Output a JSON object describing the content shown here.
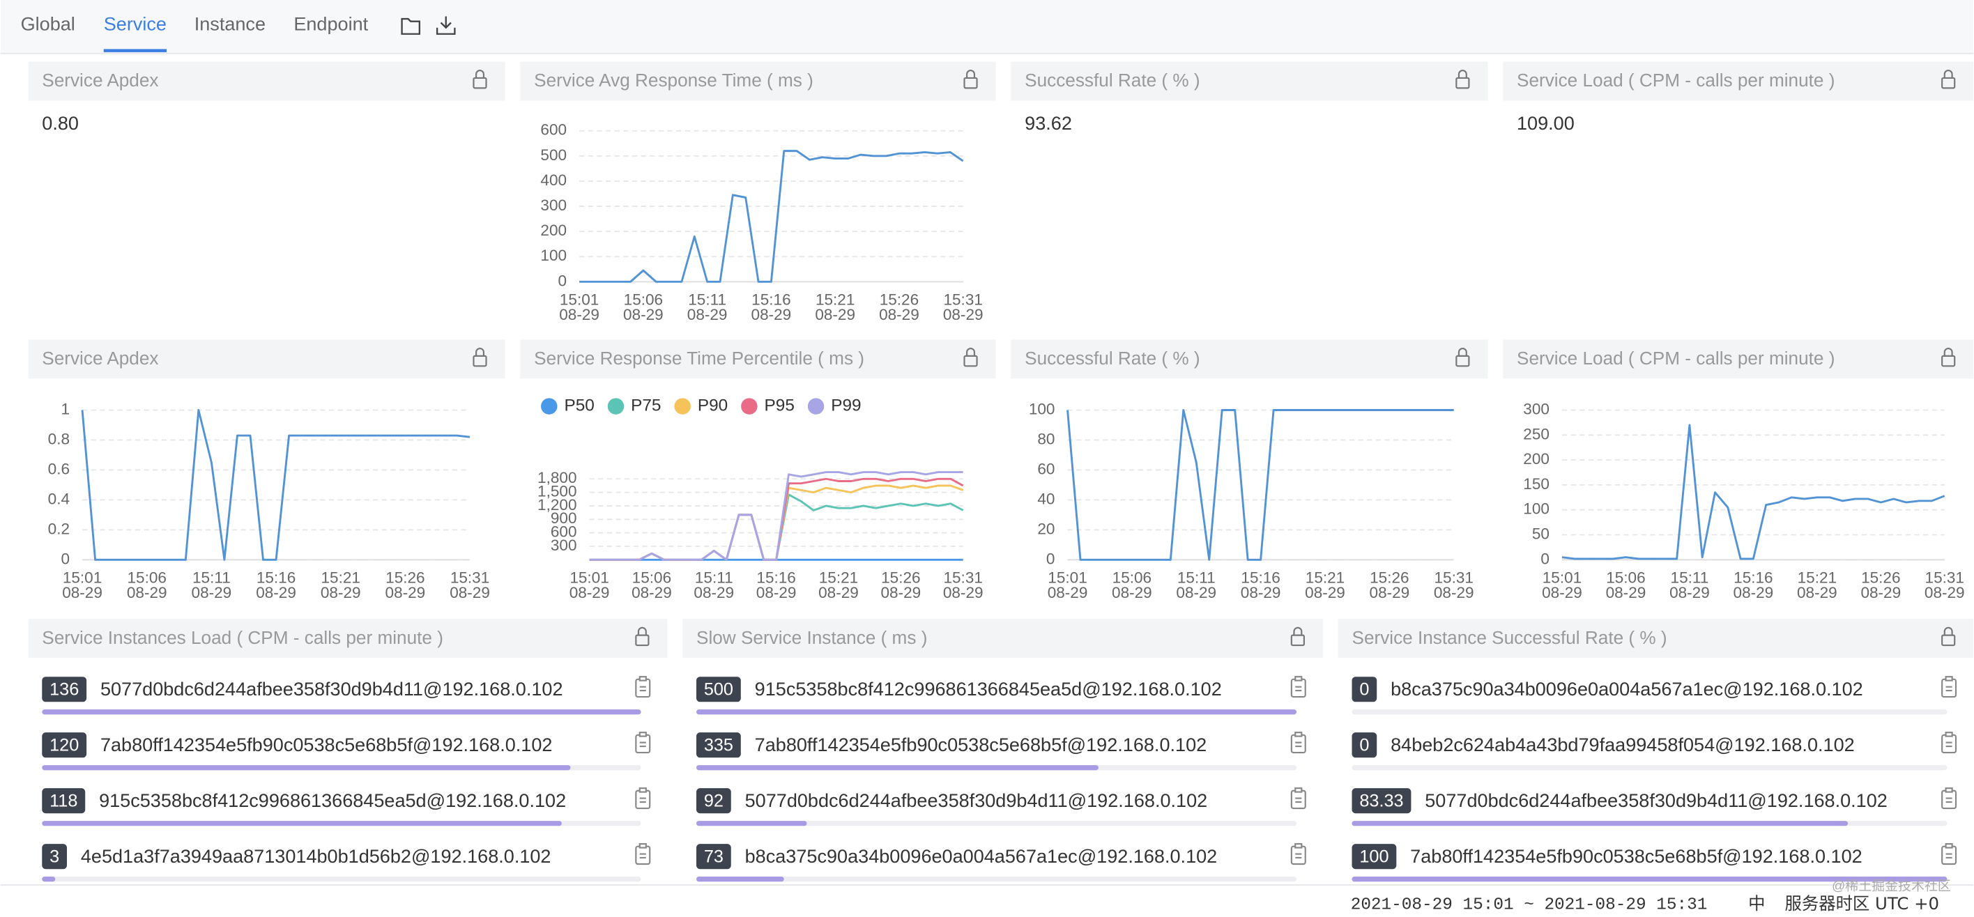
{
  "nav": {
    "tabs": [
      "Global",
      "Service",
      "Instance",
      "Endpoint"
    ],
    "active": 1
  },
  "cards": [
    {
      "title": "Service Apdex",
      "value": "0.80"
    },
    {
      "title": "Successful Rate ( % )",
      "value": "93.62"
    },
    {
      "title": "Service Load ( CPM - calls per minute )",
      "value": "109.00"
    }
  ],
  "chart_data": [
    {
      "type": "line",
      "title": "Service Avg Response Time ( ms )",
      "categories": [
        "15:01",
        null,
        null,
        null,
        null,
        "15:06",
        null,
        null,
        null,
        null,
        "15:11",
        null,
        null,
        null,
        null,
        "15:16",
        null,
        null,
        null,
        null,
        "15:21",
        null,
        null,
        null,
        null,
        "15:26",
        null,
        null,
        null,
        null,
        "15:31"
      ],
      "date_label": "08-29",
      "ylim": [
        0,
        600
      ],
      "yticks": [
        0,
        100,
        200,
        300,
        400,
        500,
        600
      ],
      "grid": true,
      "series": [
        {
          "color": "#5293d6",
          "values": [
            0,
            0,
            0,
            0,
            0,
            45,
            0,
            0,
            0,
            180,
            0,
            0,
            345,
            335,
            0,
            0,
            520,
            520,
            485,
            495,
            490,
            490,
            505,
            500,
            500,
            510,
            510,
            515,
            510,
            515,
            480
          ]
        }
      ]
    },
    {
      "type": "line",
      "title": "Service Apdex",
      "categories": [
        "15:01",
        null,
        null,
        null,
        null,
        "15:06",
        null,
        null,
        null,
        null,
        "15:11",
        null,
        null,
        null,
        null,
        "15:16",
        null,
        null,
        null,
        null,
        "15:21",
        null,
        null,
        null,
        null,
        "15:26",
        null,
        null,
        null,
        null,
        "15:31"
      ],
      "date_label": "08-29",
      "ylim": [
        0,
        1
      ],
      "yticks": [
        0,
        0.2,
        0.4,
        0.6,
        0.8,
        1
      ],
      "grid": true,
      "series": [
        {
          "color": "#5293d6",
          "values": [
            1,
            0,
            0,
            0,
            0,
            0,
            0,
            0,
            0,
            1,
            0.65,
            0,
            0.83,
            0.83,
            0,
            0,
            0.83,
            0.83,
            0.83,
            0.83,
            0.83,
            0.83,
            0.83,
            0.83,
            0.83,
            0.83,
            0.83,
            0.83,
            0.83,
            0.83,
            0.82
          ]
        }
      ]
    },
    {
      "type": "line",
      "title": "Service Response Time Percentile ( ms )",
      "categories": [
        "15:01",
        null,
        null,
        null,
        null,
        "15:06",
        null,
        null,
        null,
        null,
        "15:11",
        null,
        null,
        null,
        null,
        "15:16",
        null,
        null,
        null,
        null,
        "15:21",
        null,
        null,
        null,
        null,
        "15:26",
        null,
        null,
        null,
        null,
        "15:31"
      ],
      "date_label": "08-29",
      "ylim": [
        0,
        2100
      ],
      "yticks": [
        300,
        600,
        900,
        {
          "value": 1200,
          "label": "1,200"
        },
        {
          "value": 1500,
          "label": "1,500"
        },
        {
          "value": 1800,
          "label": "1,800"
        }
      ],
      "grid": true,
      "legend": "top-left",
      "series": [
        {
          "name": "P50",
          "color": "#4a99e8",
          "values": [
            0,
            0,
            0,
            0,
            0,
            0,
            0,
            0,
            0,
            0,
            0,
            0,
            0,
            0,
            0,
            0,
            0,
            0,
            0,
            0,
            0,
            0,
            0,
            0,
            0,
            0,
            0,
            0,
            0,
            0,
            0
          ]
        },
        {
          "name": "P75",
          "color": "#5bc4b5",
          "values": [
            0,
            0,
            0,
            0,
            0,
            140,
            0,
            0,
            0,
            0,
            200,
            0,
            1000,
            1000,
            0,
            0,
            1450,
            1300,
            1100,
            1200,
            1150,
            1150,
            1200,
            1150,
            1200,
            1250,
            1200,
            1250,
            1200,
            1250,
            1100
          ]
        },
        {
          "name": "P90",
          "color": "#f5c35a",
          "values": [
            0,
            0,
            0,
            0,
            0,
            140,
            0,
            0,
            0,
            0,
            200,
            0,
            1000,
            1000,
            0,
            0,
            1600,
            1550,
            1500,
            1600,
            1550,
            1500,
            1600,
            1650,
            1650,
            1600,
            1650,
            1600,
            1650,
            1650,
            1550
          ]
        },
        {
          "name": "P95",
          "color": "#ea6b85",
          "values": [
            0,
            0,
            0,
            0,
            0,
            140,
            0,
            0,
            0,
            0,
            200,
            0,
            1000,
            1000,
            0,
            0,
            1700,
            1700,
            1750,
            1800,
            1750,
            1750,
            1800,
            1800,
            1750,
            1800,
            1800,
            1750,
            1800,
            1800,
            1650
          ]
        },
        {
          "name": "P99",
          "color": "#a8a5e6",
          "values": [
            0,
            0,
            0,
            0,
            0,
            140,
            0,
            0,
            0,
            0,
            200,
            0,
            1000,
            1000,
            0,
            0,
            1900,
            1850,
            1900,
            1950,
            1950,
            1900,
            1950,
            1950,
            1900,
            1950,
            1950,
            1900,
            1950,
            1950,
            1950
          ]
        }
      ]
    },
    {
      "type": "line",
      "title": "Successful Rate ( % )",
      "categories": [
        "15:01",
        null,
        null,
        null,
        null,
        "15:06",
        null,
        null,
        null,
        null,
        "15:11",
        null,
        null,
        null,
        null,
        "15:16",
        null,
        null,
        null,
        null,
        "15:21",
        null,
        null,
        null,
        null,
        "15:26",
        null,
        null,
        null,
        null,
        "15:31"
      ],
      "date_label": "08-29",
      "ylim": [
        0,
        100
      ],
      "yticks": [
        0,
        20,
        40,
        60,
        80,
        100
      ],
      "grid": true,
      "series": [
        {
          "color": "#5293d6",
          "values": [
            100,
            0,
            0,
            0,
            0,
            0,
            0,
            0,
            0,
            100,
            65,
            0,
            100,
            100,
            0,
            0,
            100,
            100,
            100,
            100,
            100,
            100,
            100,
            100,
            100,
            100,
            100,
            100,
            100,
            100,
            100
          ]
        }
      ]
    },
    {
      "type": "line",
      "title": "Service Load ( CPM - calls per minute )",
      "categories": [
        "15:01",
        null,
        null,
        null,
        null,
        "15:06",
        null,
        null,
        null,
        null,
        "15:11",
        null,
        null,
        null,
        null,
        "15:16",
        null,
        null,
        null,
        null,
        "15:21",
        null,
        null,
        null,
        null,
        "15:26",
        null,
        null,
        null,
        null,
        "15:31"
      ],
      "date_label": "08-29",
      "ylim": [
        0,
        300
      ],
      "yticks": [
        0,
        50,
        100,
        150,
        200,
        250,
        300
      ],
      "grid": true,
      "series": [
        {
          "color": "#5293d6",
          "values": [
            5,
            2,
            2,
            2,
            2,
            5,
            2,
            2,
            2,
            2,
            270,
            5,
            135,
            105,
            2,
            2,
            110,
            115,
            125,
            122,
            125,
            125,
            118,
            122,
            122,
            115,
            122,
            115,
            118,
            118,
            128
          ]
        }
      ]
    }
  ],
  "lists": [
    {
      "title": "Service Instances Load ( CPM - calls per minute )",
      "items": [
        {
          "value": 136,
          "name": "5077d0bdc6d244afbee358f30d9b4d11@192.168.0.102"
        },
        {
          "value": 120,
          "name": "7ab80ff142354e5fb90c0538c5e68b5f@192.168.0.102"
        },
        {
          "value": 118,
          "name": "915c5358bc8f412c996861366845ea5d@192.168.0.102"
        },
        {
          "value": 3,
          "name": "4e5d1a3f7a3949aa8713014b0b1d56b2@192.168.0.102"
        }
      ]
    },
    {
      "title": "Slow Service Instance ( ms )",
      "items": [
        {
          "value": 500,
          "name": "915c5358bc8f412c996861366845ea5d@192.168.0.102"
        },
        {
          "value": 335,
          "name": "7ab80ff142354e5fb90c0538c5e68b5f@192.168.0.102"
        },
        {
          "value": 92,
          "name": "5077d0bdc6d244afbee358f30d9b4d11@192.168.0.102"
        },
        {
          "value": 73,
          "name": "b8ca375c90a34b0096e0a004a567a1ec@192.168.0.102"
        }
      ]
    },
    {
      "title": "Service Instance Successful Rate ( % )",
      "items": [
        {
          "value": 0,
          "name": "b8ca375c90a34b0096e0a004a567a1ec@192.168.0.102"
        },
        {
          "value": 0,
          "name": "84beb2c624ab4a43bd79faa99458f054@192.168.0.102"
        },
        {
          "value": 83.33,
          "name": "5077d0bdc6d244afbee358f30d9b4d11@192.168.0.102"
        },
        {
          "value": 100,
          "name": "7ab80ff142354e5fb90c0538c5e68b5f@192.168.0.102"
        }
      ]
    }
  ],
  "footer": {
    "time_range": "2021-08-29 15:01 ~ 2021-08-29 15:31",
    "language": "中",
    "timezone": "服务器时区 UTC +0",
    "watermark": "@稀土掘金技术社区"
  }
}
